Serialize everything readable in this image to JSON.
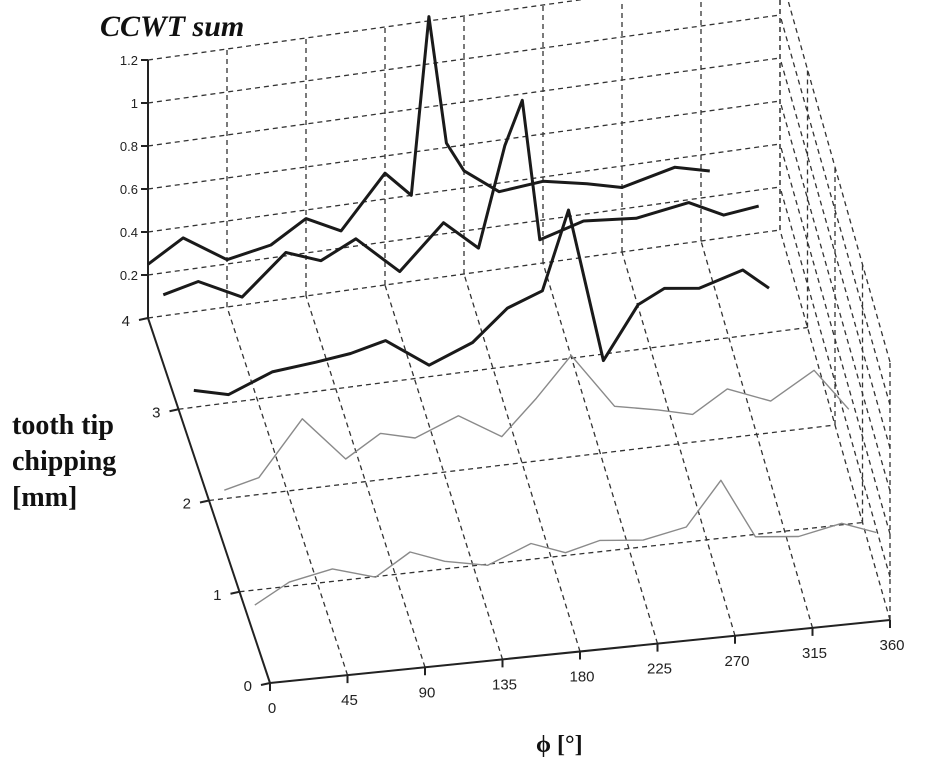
{
  "chart_data": {
    "type": "line",
    "title": "CCWT sum",
    "xlabel": "ϕ [°]",
    "ylabel": "tooth tip chipping [mm]",
    "x_ticks": [
      "0",
      "45",
      "90",
      "135",
      "180",
      "225",
      "270",
      "315",
      "360"
    ],
    "y_ticks": [
      "0",
      "1",
      "2",
      "3",
      "4"
    ],
    "z_ticks": [
      "0.2",
      "0.4",
      "0.6",
      "0.8",
      "1",
      "1.2"
    ],
    "xlim": [
      0,
      360
    ],
    "ylim": [
      0,
      4
    ],
    "zlim": [
      0,
      1.2
    ],
    "grid": true,
    "series": [
      {
        "chipping": 0.5,
        "style": "light",
        "x": [
          0,
          20,
          45,
          70,
          90,
          110,
          135,
          160,
          180,
          200,
          225,
          250,
          270,
          290,
          315,
          340,
          360
        ],
        "values": [
          0.15,
          0.24,
          0.28,
          0.22,
          0.32,
          0.26,
          0.22,
          0.3,
          0.24,
          0.28,
          0.26,
          0.3,
          0.5,
          0.22,
          0.2,
          0.24,
          0.18
        ]
      },
      {
        "chipping": 1.5,
        "style": "light",
        "x": [
          0,
          20,
          45,
          70,
          90,
          110,
          135,
          160,
          180,
          200,
          225,
          250,
          270,
          290,
          315,
          340,
          360
        ],
        "values": [
          0.26,
          0.3,
          0.55,
          0.34,
          0.44,
          0.4,
          0.48,
          0.36,
          0.52,
          0.7,
          0.44,
          0.4,
          0.36,
          0.46,
          0.38,
          0.5,
          0.3
        ]
      },
      {
        "chipping": 2.5,
        "style": "dark",
        "x": [
          0,
          20,
          45,
          70,
          90,
          110,
          135,
          160,
          180,
          200,
          215,
          235,
          255,
          270,
          290,
          315,
          330
        ],
        "values": [
          0.3,
          0.26,
          0.34,
          0.36,
          0.38,
          0.42,
          0.28,
          0.36,
          0.5,
          0.56,
          0.92,
          0.2,
          0.44,
          0.5,
          0.48,
          0.54,
          0.44
        ]
      },
      {
        "chipping": 3.5,
        "style": "dark",
        "x": [
          0,
          20,
          45,
          70,
          90,
          110,
          135,
          160,
          180,
          195,
          205,
          215,
          240,
          270,
          300,
          320,
          340
        ],
        "values": [
          0.32,
          0.36,
          0.26,
          0.44,
          0.38,
          0.46,
          0.28,
          0.48,
          0.34,
          0.8,
          1.0,
          0.34,
          0.4,
          0.38,
          0.42,
          0.34,
          0.36
        ]
      },
      {
        "chipping": 4.0,
        "style": "dark",
        "x": [
          0,
          20,
          45,
          70,
          90,
          110,
          135,
          150,
          160,
          170,
          180,
          200,
          225,
          250,
          270,
          300,
          320
        ],
        "values": [
          0.25,
          0.35,
          0.22,
          0.26,
          0.36,
          0.28,
          0.52,
          0.4,
          1.22,
          0.62,
          0.48,
          0.36,
          0.38,
          0.34,
          0.3,
          0.36,
          0.32
        ]
      }
    ]
  }
}
